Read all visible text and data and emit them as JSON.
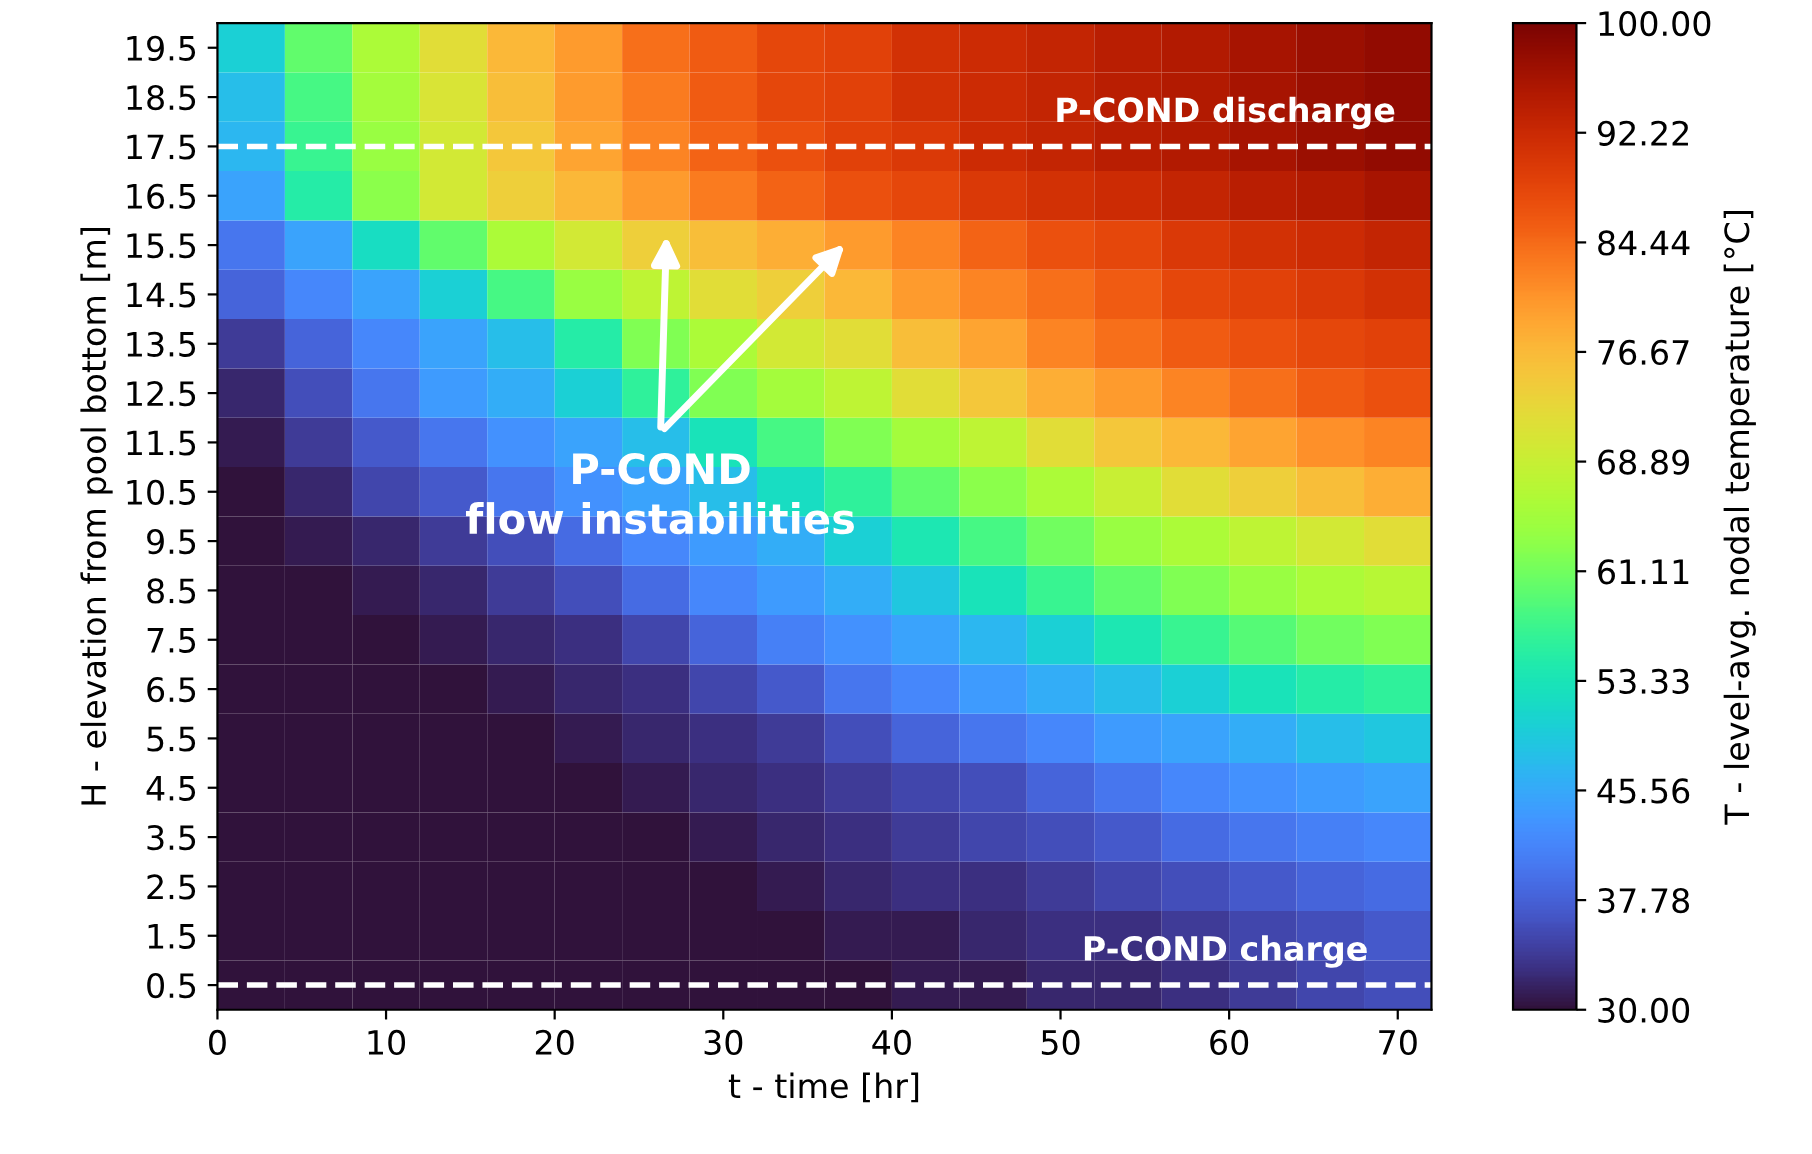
{
  "chart_data": {
    "type": "heatmap",
    "xlabel": "t - time [hr]",
    "ylabel": "H - elevation from pool bottom [m]",
    "clabel": "T - level-avg. nodal temperature [°C]",
    "x": [
      2,
      6,
      10,
      14,
      18,
      22,
      26,
      30,
      34,
      38,
      42,
      46,
      50,
      54,
      58,
      62,
      66,
      70
    ],
    "xlim": [
      0,
      72
    ],
    "xticks": [
      0,
      10,
      20,
      30,
      40,
      50,
      60,
      70
    ],
    "y_categories": [
      "19.5",
      "18.5",
      "17.5",
      "16.5",
      "15.5",
      "14.5",
      "13.5",
      "12.5",
      "11.5",
      "10.5",
      "9.5",
      "8.5",
      "7.5",
      "6.5",
      "5.5",
      "4.5",
      "3.5",
      "2.5",
      "1.5",
      "0.5"
    ],
    "cells": [
      [
        50,
        60,
        66,
        72,
        77,
        80,
        84,
        86,
        88,
        89,
        91,
        92,
        93,
        94,
        95,
        96,
        97,
        98
      ],
      [
        48,
        58,
        65,
        71,
        76,
        80,
        83,
        86,
        88,
        89,
        91,
        92,
        93,
        94,
        95,
        96,
        97,
        98
      ],
      [
        47,
        57,
        64,
        70,
        75,
        79,
        82,
        85,
        87,
        89,
        90,
        92,
        93,
        94,
        95,
        96,
        97,
        98
      ],
      [
        45,
        55,
        63,
        70,
        74,
        77,
        80,
        83,
        85,
        87,
        88,
        90,
        91,
        92,
        93,
        94,
        95,
        96
      ],
      [
        40,
        45,
        52,
        60,
        66,
        70,
        74,
        76,
        78,
        80,
        82,
        85,
        87,
        88,
        90,
        91,
        92,
        93
      ],
      [
        38,
        42,
        45,
        50,
        58,
        64,
        68,
        72,
        74,
        77,
        80,
        82,
        84,
        86,
        88,
        89,
        90,
        91
      ],
      [
        34,
        38,
        42,
        45,
        48,
        55,
        62,
        66,
        70,
        72,
        76,
        79,
        82,
        84,
        86,
        87,
        88,
        89
      ],
      [
        32,
        36,
        40,
        44,
        46,
        50,
        56,
        62,
        65,
        68,
        72,
        75,
        78,
        80,
        82,
        84,
        86,
        87
      ],
      [
        31,
        34,
        37,
        40,
        43,
        45,
        48,
        53,
        58,
        62,
        65,
        68,
        72,
        75,
        77,
        79,
        81,
        82
      ],
      [
        30,
        32,
        35,
        37,
        40,
        43,
        45,
        48,
        52,
        56,
        60,
        63,
        66,
        69,
        72,
        74,
        76,
        78
      ],
      [
        30,
        31,
        32,
        34,
        36,
        39,
        42,
        44,
        46,
        50,
        54,
        58,
        61,
        64,
        66,
        68,
        70,
        72
      ],
      [
        30,
        30,
        31,
        32,
        34,
        36,
        39,
        42,
        44,
        46,
        49,
        53,
        57,
        60,
        62,
        64,
        66,
        67
      ],
      [
        30,
        30,
        30,
        31,
        32,
        33,
        35,
        38,
        41,
        43,
        45,
        47,
        50,
        54,
        57,
        59,
        61,
        62
      ],
      [
        30,
        30,
        30,
        30,
        31,
        32,
        33,
        35,
        37,
        40,
        42,
        44,
        46,
        48,
        50,
        53,
        55,
        56
      ],
      [
        30,
        30,
        30,
        30,
        30,
        31,
        32,
        33,
        34,
        36,
        38,
        40,
        42,
        44,
        45,
        46,
        48,
        49
      ],
      [
        30,
        30,
        30,
        30,
        30,
        30,
        31,
        32,
        33,
        34,
        35,
        36,
        38,
        40,
        42,
        43,
        44,
        45
      ],
      [
        30,
        30,
        30,
        30,
        30,
        30,
        30,
        31,
        32,
        33,
        34,
        35,
        36,
        37,
        39,
        40,
        41,
        42
      ],
      [
        30,
        30,
        30,
        30,
        30,
        30,
        30,
        30,
        31,
        32,
        33,
        33,
        34,
        35,
        36,
        37,
        38,
        39
      ],
      [
        30,
        30,
        30,
        30,
        30,
        30,
        30,
        30,
        30,
        31,
        31,
        32,
        33,
        33,
        34,
        35,
        36,
        37
      ],
      [
        30,
        30,
        30,
        30,
        30,
        30,
        30,
        30,
        30,
        30,
        31,
        31,
        32,
        32,
        33,
        34,
        35,
        36
      ]
    ],
    "clim": [
      30,
      100
    ],
    "cticks": [
      {
        "value": 30,
        "label": "30.00"
      },
      {
        "value": 37.78,
        "label": "37.78"
      },
      {
        "value": 45.56,
        "label": "45.56"
      },
      {
        "value": 53.33,
        "label": "53.33"
      },
      {
        "value": 61.11,
        "label": "61.11"
      },
      {
        "value": 68.89,
        "label": "68.89"
      },
      {
        "value": 76.67,
        "label": "76.67"
      },
      {
        "value": 84.44,
        "label": "84.44"
      },
      {
        "value": 92.22,
        "label": "92.22"
      },
      {
        "value": 100,
        "label": "100.00"
      }
    ],
    "ref_lines": [
      {
        "axis": "y",
        "value": "17.5",
        "label": "P-COND discharge",
        "color": "#ffffff",
        "line_style": "dashed"
      },
      {
        "axis": "y",
        "value": "0.5",
        "label": "P-COND charge",
        "color": "#ffffff",
        "line_style": "dashed"
      }
    ],
    "annotations": [
      "P-COND\nflow instabilities"
    ],
    "grid": false
  }
}
